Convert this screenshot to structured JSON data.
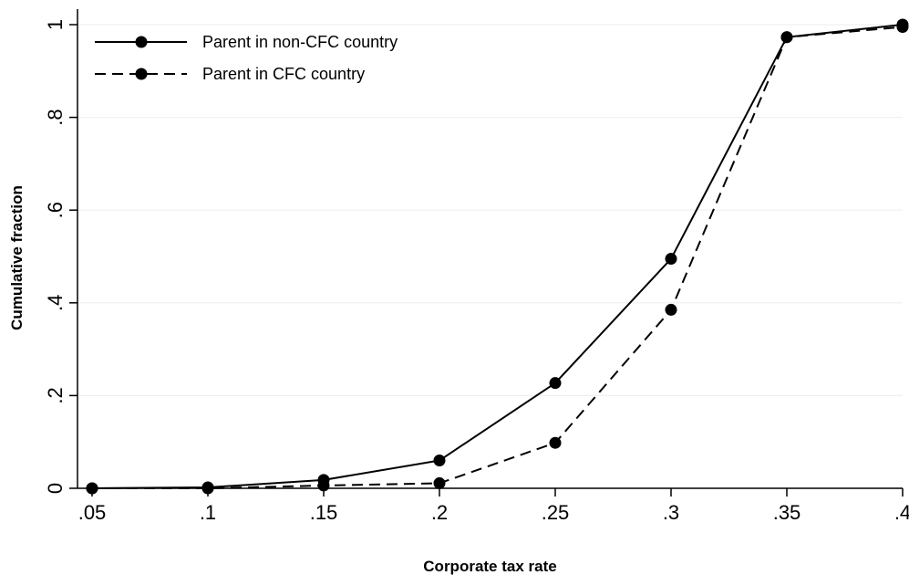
{
  "chart_data": {
    "type": "line",
    "title": "",
    "xlabel": "Corporate tax rate",
    "ylabel": "Cumulative fraction",
    "x": [
      0.05,
      0.1,
      0.15,
      0.2,
      0.25,
      0.3,
      0.35,
      0.4
    ],
    "x_tick_values": [
      0.05,
      0.1,
      0.15,
      0.2,
      0.25,
      0.3,
      0.35,
      0.4
    ],
    "x_tick_labels": [
      ".05",
      ".1",
      ".15",
      ".2",
      ".25",
      ".3",
      ".35",
      ".4"
    ],
    "y_tick_values": [
      0,
      0.2,
      0.4,
      0.6,
      0.8,
      1
    ],
    "y_tick_labels": [
      "0",
      ".2",
      ".4",
      ".6",
      ".8",
      "1"
    ],
    "xlim": [
      0.05,
      0.4
    ],
    "ylim": [
      0,
      1
    ],
    "grid": "horizontal",
    "legend_position": "top-left",
    "series": [
      {
        "name": "Parent in non-CFC country",
        "style": "solid",
        "color": "#000000",
        "values": [
          0.0,
          0.002,
          0.018,
          0.06,
          0.227,
          0.495,
          0.973,
          1.0
        ]
      },
      {
        "name": "Parent in CFC country",
        "style": "dashed",
        "color": "#000000",
        "values": [
          0.0,
          0.0,
          0.006,
          0.011,
          0.098,
          0.385,
          0.973,
          0.995
        ]
      }
    ]
  }
}
